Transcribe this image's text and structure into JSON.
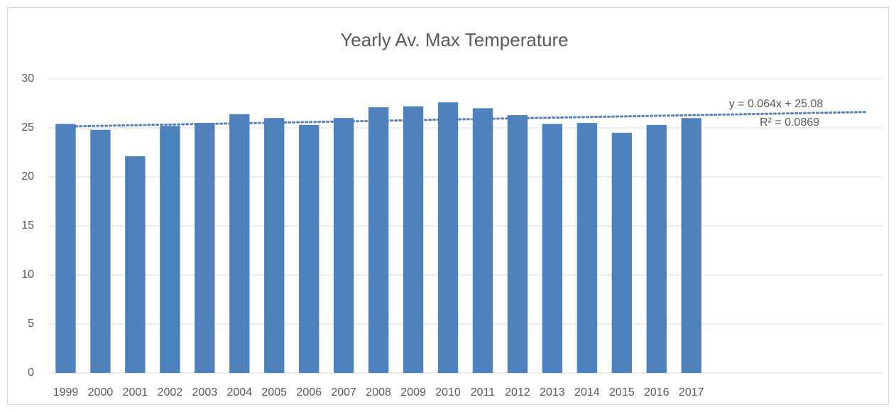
{
  "chart_data": {
    "type": "bar",
    "title": "Yearly Av. Max Temperature",
    "categories": [
      "1999",
      "2000",
      "2001",
      "2002",
      "2003",
      "2004",
      "2005",
      "2006",
      "2007",
      "2008",
      "2009",
      "2010",
      "2011",
      "2012",
      "2013",
      "2014",
      "2015",
      "2016",
      "2017",
      null,
      null,
      null,
      null,
      null
    ],
    "values": [
      25.4,
      24.8,
      22.1,
      25.2,
      25.5,
      26.4,
      26.0,
      25.3,
      26.0,
      27.1,
      27.2,
      27.6,
      27.0,
      26.3,
      25.4,
      25.5,
      24.5,
      25.3,
      26.0,
      null,
      null,
      null,
      null,
      null
    ],
    "color": "#4f81bd",
    "ylim": [
      0,
      30
    ],
    "yticks": [
      0,
      5,
      10,
      15,
      20,
      25,
      30
    ],
    "grid": true,
    "trendline": {
      "slope": 0.064,
      "intercept": 25.08,
      "equation": "y = 0.064x + 25.08",
      "r_squared": "R² = 0.0869",
      "color": "#4f81bd"
    }
  }
}
